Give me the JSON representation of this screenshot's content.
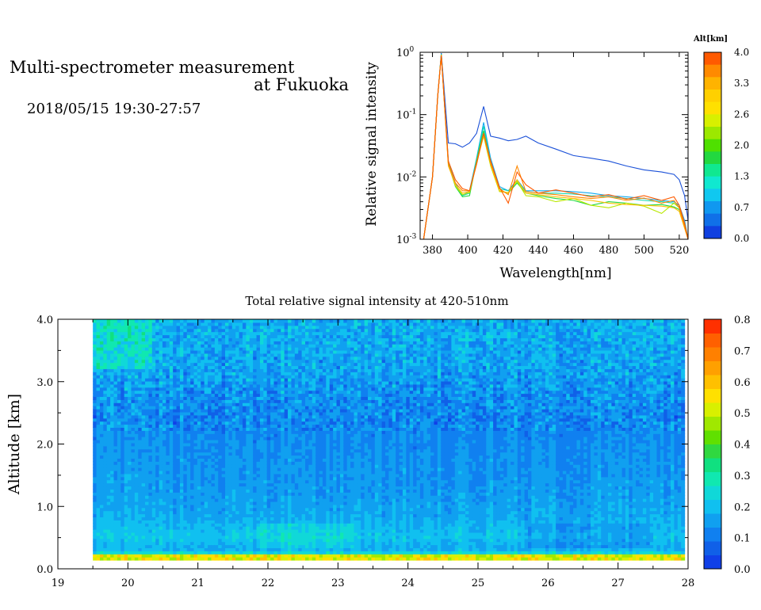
{
  "header": {
    "title_line1": "Multi-spectrometer measurement",
    "title_line2": "at Fukuoka",
    "datetime": "2018/05/15 19:30-27:57"
  },
  "chart_data": [
    {
      "type": "line",
      "xlabel": "Wavelength[nm]",
      "ylabel": "Relative signal intensity",
      "yscale": "log",
      "xlim": [
        373,
        525
      ],
      "ylim": [
        0.001,
        1
      ],
      "x_ticks": [
        "380",
        "400",
        "420",
        "440",
        "460",
        "480",
        "500",
        "520"
      ],
      "x_tick_values": [
        380,
        400,
        420,
        440,
        460,
        480,
        500,
        520
      ],
      "y_ticks": [
        {
          "base": "10",
          "exp": "0",
          "value": 1
        },
        {
          "base": "10",
          "exp": "-1",
          "value": 0.1
        },
        {
          "base": "10",
          "exp": "-2",
          "value": 0.01
        },
        {
          "base": "10",
          "exp": "-3",
          "value": 0.001
        }
      ],
      "legend": {
        "title": "Alt[km]",
        "labels": [
          "4.0",
          "3.3",
          "2.6",
          "2.0",
          "1.3",
          "0.7",
          "0.0"
        ],
        "colors": [
          "#ff5a00",
          "#ff8a00",
          "#ffb300",
          "#ffd000",
          "#ffe000",
          "#d8f000",
          "#9ce800",
          "#4fe000",
          "#22d840",
          "#10e890",
          "#10e8d0",
          "#10c8f0",
          "#1098f0",
          "#1070e8",
          "#1040e0"
        ]
      },
      "x": [
        375,
        380,
        383,
        385,
        389,
        393,
        397,
        401,
        405,
        409,
        413,
        418,
        423,
        428,
        433,
        440,
        450,
        460,
        470,
        480,
        490,
        500,
        510,
        517,
        520,
        523,
        525
      ],
      "series": [
        {
          "color": "#1a50d8",
          "values": [
            0.001,
            0.01,
            0.2,
            0.97,
            0.035,
            0.034,
            0.03,
            0.035,
            0.05,
            0.135,
            0.045,
            0.042,
            0.038,
            0.04,
            0.045,
            0.035,
            0.028,
            0.022,
            0.02,
            0.018,
            0.015,
            0.013,
            0.012,
            0.011,
            0.009,
            0.005,
            0.002
          ]
        },
        {
          "color": "#10a8f0",
          "values": [
            0.001,
            0.01,
            0.2,
            0.95,
            0.018,
            0.008,
            0.005,
            0.006,
            0.02,
            0.075,
            0.02,
            0.007,
            0.006,
            0.009,
            0.006,
            0.006,
            0.006,
            0.0058,
            0.0055,
            0.005,
            0.0048,
            0.0045,
            0.0042,
            0.004,
            0.0035,
            0.002,
            0.001
          ]
        },
        {
          "color": "#10d8b0",
          "values": [
            0.001,
            0.01,
            0.2,
            0.93,
            0.017,
            0.0075,
            0.005,
            0.0055,
            0.019,
            0.065,
            0.018,
            0.0065,
            0.006,
            0.0085,
            0.0058,
            0.0055,
            0.0055,
            0.0053,
            0.005,
            0.0048,
            0.0045,
            0.0042,
            0.004,
            0.0038,
            0.0033,
            0.0018,
            0.001
          ]
        },
        {
          "color": "#22d840",
          "values": [
            0.001,
            0.01,
            0.2,
            0.92,
            0.016,
            0.007,
            0.0048,
            0.005,
            0.018,
            0.055,
            0.016,
            0.006,
            0.0055,
            0.008,
            0.0055,
            0.005,
            0.0045,
            0.0042,
            0.0035,
            0.004,
            0.0038,
            0.0035,
            0.0036,
            0.0033,
            0.003,
            0.0018,
            0.001
          ]
        },
        {
          "color": "#b8e800",
          "values": [
            0.001,
            0.01,
            0.2,
            0.91,
            0.016,
            0.0072,
            0.0052,
            0.0056,
            0.017,
            0.045,
            0.015,
            0.0058,
            0.0056,
            0.0085,
            0.005,
            0.0048,
            0.004,
            0.0045,
            0.0035,
            0.0032,
            0.0038,
            0.0034,
            0.0026,
            0.0038,
            0.0032,
            0.0016,
            0.001
          ]
        },
        {
          "color": "#ffc000",
          "values": [
            0.001,
            0.01,
            0.2,
            0.9,
            0.015,
            0.0075,
            0.0055,
            0.0058,
            0.016,
            0.048,
            0.016,
            0.006,
            0.0055,
            0.009,
            0.0055,
            0.0052,
            0.0048,
            0.0045,
            0.0042,
            0.0038,
            0.0036,
            0.0035,
            0.0034,
            0.0032,
            0.0028,
            0.0015,
            0.001
          ]
        },
        {
          "color": "#ff8800",
          "values": [
            0.001,
            0.01,
            0.2,
            0.9,
            0.016,
            0.008,
            0.006,
            0.006,
            0.017,
            0.05,
            0.017,
            0.0065,
            0.0052,
            0.015,
            0.0058,
            0.0055,
            0.0052,
            0.0048,
            0.0045,
            0.0048,
            0.0042,
            0.0046,
            0.0038,
            0.0042,
            0.0032,
            0.0016,
            0.001
          ]
        },
        {
          "color": "#ff5a00",
          "values": [
            0.001,
            0.01,
            0.2,
            0.89,
            0.018,
            0.009,
            0.0065,
            0.006,
            0.016,
            0.05,
            0.018,
            0.0068,
            0.0038,
            0.012,
            0.0075,
            0.0055,
            0.0062,
            0.0055,
            0.0048,
            0.0052,
            0.0044,
            0.005,
            0.0042,
            0.0048,
            0.0035,
            0.0018,
            0.001
          ]
        }
      ]
    },
    {
      "type": "heatmap",
      "title": "Total relative signal intensity at 420-510nm",
      "xlabel": "",
      "ylabel": "Altitude [km]",
      "xlim": [
        19,
        28
      ],
      "ylim": [
        0,
        4
      ],
      "x_ticks": [
        "19",
        "20",
        "21",
        "22",
        "23",
        "24",
        "25",
        "26",
        "27",
        "28"
      ],
      "x_tick_values": [
        19,
        20,
        21,
        22,
        23,
        24,
        25,
        26,
        27,
        28
      ],
      "y_ticks": [
        "0.0",
        "1.0",
        "2.0",
        "3.0",
        "4.0"
      ],
      "y_tick_values": [
        0,
        1,
        2,
        3,
        4
      ],
      "data_x_range": [
        19.5,
        27.95
      ],
      "data_y_range": [
        0.14,
        4.0
      ],
      "colorbar": {
        "labels": [
          "0.8",
          "0.7",
          "0.6",
          "0.5",
          "0.4",
          "0.3",
          "0.2",
          "0.1",
          "0.0"
        ],
        "range": [
          0,
          0.8
        ],
        "colors": [
          "#1040e8",
          "#1060e8",
          "#1080f0",
          "#10a0f0",
          "#10c0f0",
          "#10d8d8",
          "#10e8b0",
          "#10e080",
          "#30d840",
          "#60e000",
          "#a0e800",
          "#d8f000",
          "#ffe000",
          "#ffc000",
          "#ffa000",
          "#ff8000",
          "#ff6000",
          "#ff3000"
        ]
      },
      "profile": [
        {
          "alt": 0.14,
          "value": 0.55
        },
        {
          "alt": 0.2,
          "value": 0.28
        },
        {
          "alt": 0.3,
          "value": 0.17
        },
        {
          "alt": 0.5,
          "value": 0.21
        },
        {
          "alt": 0.8,
          "value": 0.17
        },
        {
          "alt": 1.2,
          "value": 0.15
        },
        {
          "alt": 1.6,
          "value": 0.14
        },
        {
          "alt": 2.0,
          "value": 0.13
        },
        {
          "alt": 2.4,
          "value": 0.12
        },
        {
          "alt": 2.8,
          "value": 0.14
        },
        {
          "alt": 3.2,
          "value": 0.16
        },
        {
          "alt": 3.6,
          "value": 0.17
        },
        {
          "alt": 4.0,
          "value": 0.18
        }
      ]
    }
  ]
}
